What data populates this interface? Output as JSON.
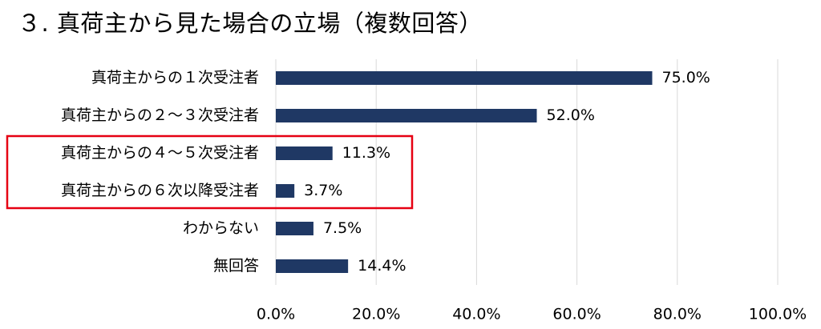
{
  "chart_data": {
    "type": "bar",
    "orientation": "horizontal",
    "title": "３. 真荷主から見た場合の立場（複数回答）",
    "categories": [
      "真荷主からの１次受注者",
      "真荷主からの２～３次受注者",
      "真荷主からの４～５次受注者",
      "真荷主からの６次以降受注者",
      "わからない",
      "無回答"
    ],
    "values": [
      75.0,
      52.0,
      11.3,
      3.7,
      7.5,
      14.4
    ],
    "value_labels": [
      "75.0%",
      "52.0%",
      "11.3%",
      "3.7%",
      "7.5%",
      "14.4%"
    ],
    "xlim": [
      0,
      100
    ],
    "xticks": [
      0,
      20,
      40,
      60,
      80,
      100
    ],
    "xtick_labels": [
      "0.0%",
      "20.0%",
      "40.0%",
      "60.0%",
      "80.0%",
      "100.0%"
    ],
    "grid": "vertical",
    "legend": "none",
    "bar_color": "#1f3864",
    "grid_color": "#d9d9d9",
    "highlight": {
      "categories": [
        "真荷主からの４～５次受注者",
        "真荷主からの６次以降受注者"
      ],
      "color": "#e60012"
    }
  }
}
